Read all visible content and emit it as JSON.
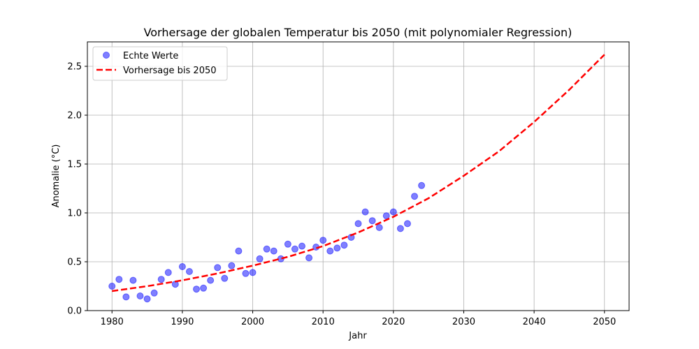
{
  "chart_data": {
    "type": "scatter",
    "title": "Vorhersage der globalen Temperatur bis 2050 (mit polynomialer Regression)",
    "xlabel": "Jahr",
    "ylabel": "Anomalie (°C)",
    "xlim": [
      1976.5,
      2053.5
    ],
    "ylim": [
      0,
      2.75
    ],
    "xticks": [
      1980,
      1990,
      2000,
      2010,
      2020,
      2030,
      2040,
      2050
    ],
    "yticks": [
      0.0,
      0.5,
      1.0,
      1.5,
      2.0,
      2.5
    ],
    "grid": true,
    "legend_position": "top-left",
    "series": [
      {
        "name": "Echte Werte",
        "kind": "scatter",
        "color": "#0000ff",
        "x": [
          1980,
          1981,
          1982,
          1983,
          1984,
          1985,
          1986,
          1987,
          1988,
          1989,
          1990,
          1991,
          1992,
          1993,
          1994,
          1995,
          1996,
          1997,
          1998,
          1999,
          2000,
          2001,
          2002,
          2003,
          2004,
          2005,
          2006,
          2007,
          2008,
          2009,
          2010,
          2011,
          2012,
          2013,
          2014,
          2015,
          2016,
          2017,
          2018,
          2019,
          2020,
          2021,
          2022,
          2023,
          2024
        ],
        "y": [
          0.25,
          0.32,
          0.14,
          0.31,
          0.15,
          0.12,
          0.18,
          0.32,
          0.39,
          0.27,
          0.45,
          0.4,
          0.22,
          0.23,
          0.31,
          0.44,
          0.33,
          0.46,
          0.61,
          0.38,
          0.39,
          0.53,
          0.63,
          0.61,
          0.53,
          0.68,
          0.63,
          0.66,
          0.54,
          0.65,
          0.72,
          0.61,
          0.64,
          0.67,
          0.75,
          0.89,
          1.01,
          0.92,
          0.85,
          0.97,
          1.01,
          0.84,
          0.89,
          1.17,
          1.28
        ]
      },
      {
        "name": "Vorhersage bis 2050",
        "kind": "line",
        "color": "#ff0000",
        "x": [
          1980,
          1985,
          1990,
          1995,
          2000,
          2005,
          2010,
          2015,
          2020,
          2025,
          2030,
          2035,
          2040,
          2045,
          2050
        ],
        "y": [
          0.2,
          0.25,
          0.31,
          0.38,
          0.46,
          0.55,
          0.66,
          0.8,
          0.96,
          1.15,
          1.38,
          1.63,
          1.93,
          2.26,
          2.62
        ]
      }
    ]
  }
}
